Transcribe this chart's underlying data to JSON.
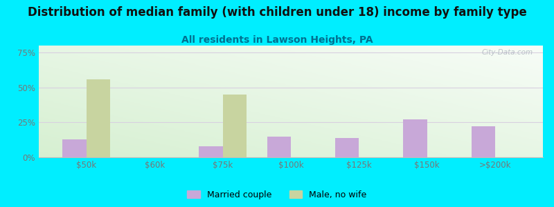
{
  "title": "Distribution of median family (with children under 18) income by family type",
  "subtitle": "All residents in Lawson Heights, PA",
  "categories": [
    "$50k",
    "$60k",
    "$75k",
    "$100k",
    "$125k",
    "$150k",
    ">$200k"
  ],
  "married_couple": [
    13,
    0,
    8,
    15,
    14,
    27,
    22
  ],
  "male_no_wife": [
    56,
    0,
    45,
    0,
    0,
    0,
    0
  ],
  "bar_color_married": "#c8a8d8",
  "bar_color_male": "#c8d4a0",
  "background_outer": "#00eeff",
  "ylim": [
    0,
    80
  ],
  "yticks": [
    0,
    25,
    50,
    75
  ],
  "yticklabels": [
    "0%",
    "25%",
    "50%",
    "75%"
  ],
  "legend_labels": [
    "Married couple",
    "Male, no wife"
  ],
  "watermark": "City-Data.com",
  "bar_width": 0.35,
  "title_fontsize": 12,
  "subtitle_fontsize": 10,
  "subtitle_color": "#007090",
  "tick_color": "#777777",
  "grid_color": "#d8d0e0",
  "spine_color": "#bbbbbb"
}
